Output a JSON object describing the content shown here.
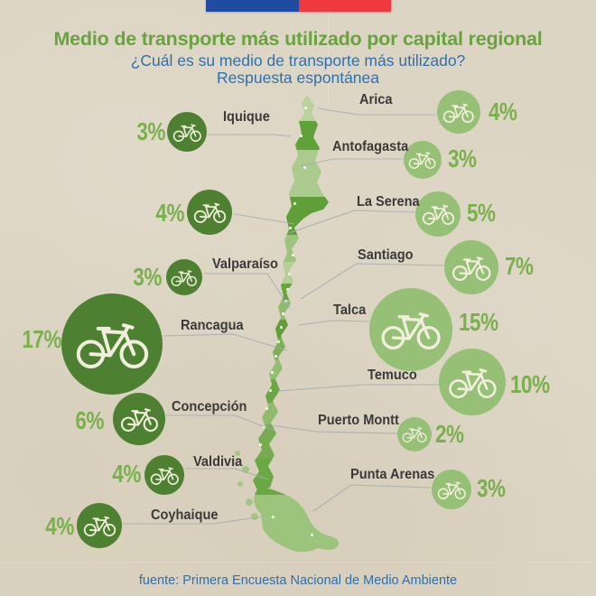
{
  "page": {
    "background_color": "#ddd5c3"
  },
  "flag_banner": {
    "blue": "#1f4ba0",
    "red": "#ee3a3e"
  },
  "header": {
    "title": "Medio de transporte más utilizado por capital regional",
    "subtitle_line1": "¿Cuál es su medio de transporte más utilizado?",
    "subtitle_line2": "Respuesta espontánea",
    "title_color": "#68a33e",
    "subtitle_color": "#2f70ae"
  },
  "footer": {
    "source": "fuente: Primera Encuesta Nacional de Medio Ambiente"
  },
  "colors": {
    "bubble_dark": "#4d8030",
    "bubble_light": "#96c075",
    "pct_text": "#7ab04d",
    "label_text": "#3a3a3a",
    "connector": "#a3abb0",
    "bike": "#f1eedd"
  },
  "chart_data": {
    "type": "proportional-symbol-map",
    "region": "Chile",
    "symbol": "bicycle",
    "unit": "percent",
    "title": "Medio de transporte más utilizado por capital regional",
    "question": "¿Cuál es su medio de transporte más utilizado?",
    "note": "Respuesta espontánea",
    "source": "fuente: Primera Encuesta Nacional de Medio Ambiente",
    "legend_position": "none",
    "cities": [
      {
        "id": "arica",
        "name": "Arica",
        "value": 4,
        "pct_label": "4%",
        "side": "right"
      },
      {
        "id": "iquique",
        "name": "Iquique",
        "value": 3,
        "pct_label": "3%",
        "side": "left"
      },
      {
        "id": "antofagasta",
        "name": "Antofagasta",
        "value": 3,
        "pct_label": "3%",
        "side": "right"
      },
      {
        "id": "unlabeled",
        "name": "",
        "value": 4,
        "pct_label": "4%",
        "side": "left"
      },
      {
        "id": "la-serena",
        "name": "La Serena",
        "value": 5,
        "pct_label": "5%",
        "side": "right"
      },
      {
        "id": "valparaiso",
        "name": "Valparaíso",
        "value": 3,
        "pct_label": "3%",
        "side": "left"
      },
      {
        "id": "santiago",
        "name": "Santiago",
        "value": 7,
        "pct_label": "7%",
        "side": "right"
      },
      {
        "id": "rancagua",
        "name": "Rancagua",
        "value": 17,
        "pct_label": "17%",
        "side": "left"
      },
      {
        "id": "talca",
        "name": "Talca",
        "value": 15,
        "pct_label": "15%",
        "side": "right"
      },
      {
        "id": "concepcion",
        "name": "Concepción",
        "value": 6,
        "pct_label": "6%",
        "side": "left"
      },
      {
        "id": "temuco",
        "name": "Temuco",
        "value": 10,
        "pct_label": "10%",
        "side": "right"
      },
      {
        "id": "valdivia",
        "name": "Valdivia",
        "value": 4,
        "pct_label": "4%",
        "side": "left"
      },
      {
        "id": "puerto-montt",
        "name": "Puerto Montt",
        "value": 2,
        "pct_label": "2%",
        "side": "right"
      },
      {
        "id": "coyhaique",
        "name": "Coyhaique",
        "value": 4,
        "pct_label": "4%",
        "side": "left"
      },
      {
        "id": "punta-arenas",
        "name": "Punta Arenas",
        "value": 3,
        "pct_label": "3%",
        "side": "right"
      }
    ]
  }
}
